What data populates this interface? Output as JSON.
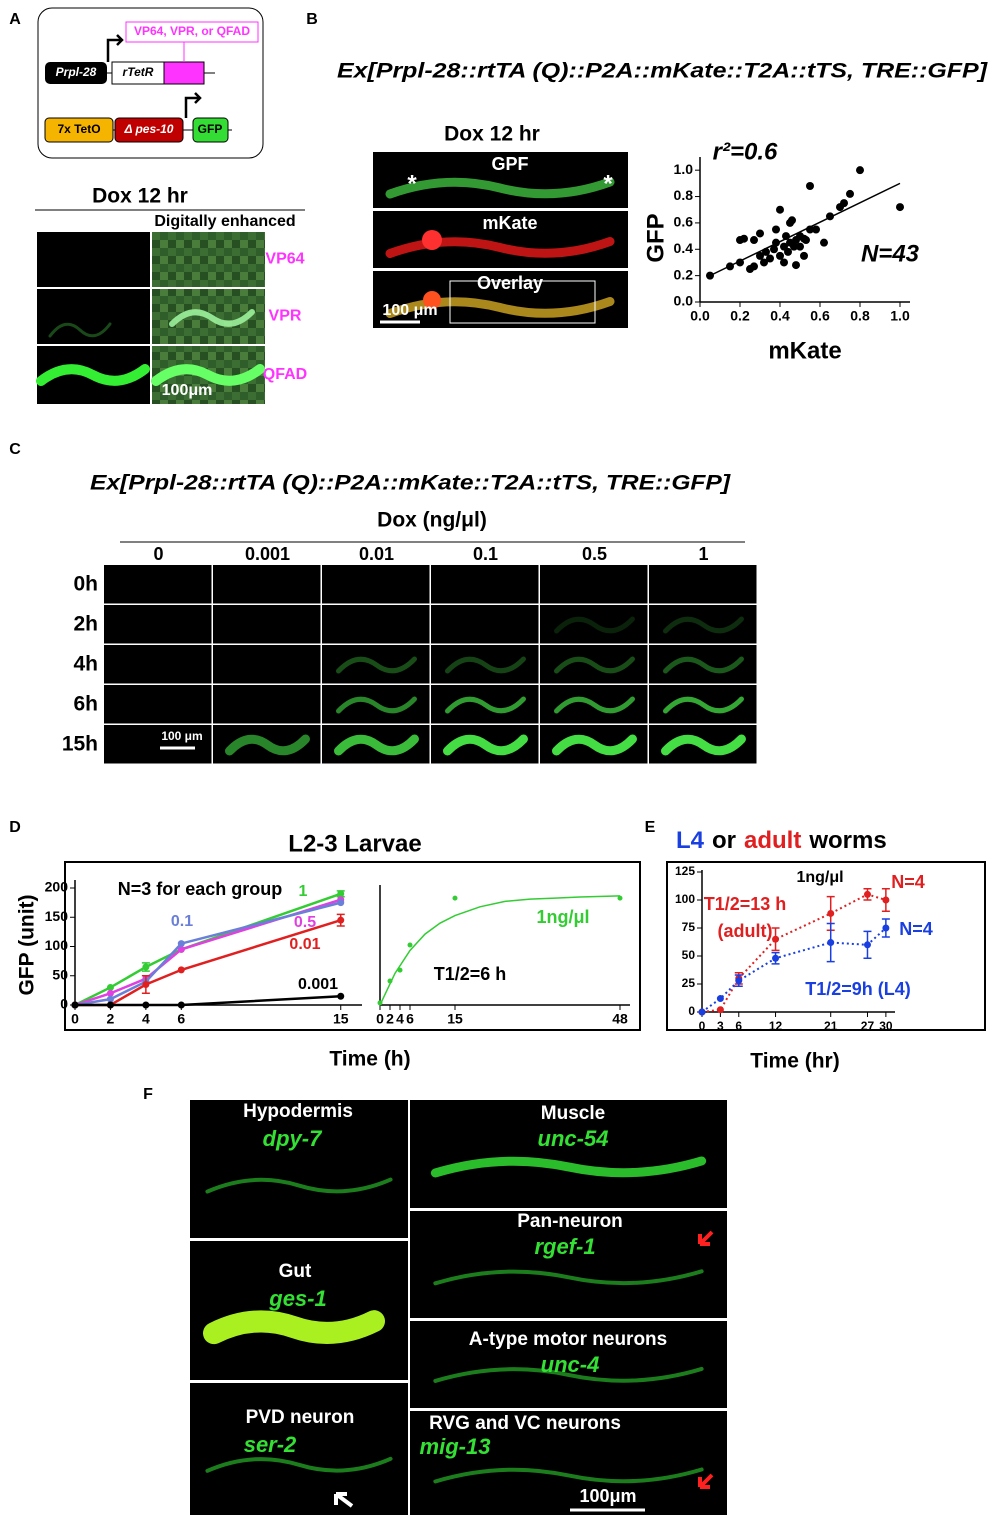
{
  "panel_labels": [
    "A",
    "B",
    "C",
    "D",
    "E",
    "F"
  ],
  "a": {
    "activator": "VP64, VPR, or QFAD",
    "promoter": "Prpl-28",
    "rtetr": "rTetR",
    "teto": "7x TetO",
    "pes10": "Δ pes-10",
    "gfp": "GFP",
    "condition": "Dox 12 hr",
    "enhanced": "Digitally enhanced",
    "rows": [
      "VP64",
      "VPR",
      "QFAD"
    ],
    "scale_bar": "100μm"
  },
  "b": {
    "title": "Ex[Prpl-28::rtTA (Q)::P2A::mKate::T2A::tTS, TRE::GFP]",
    "condition": "Dox 12 hr",
    "channels": [
      "GPF",
      "mKate",
      "Overlay"
    ],
    "asterisk": "*",
    "scale_bar": "100 μm"
  },
  "c": {
    "title": "Ex[Prpl-28::rtTA (Q)::P2A::mKate::T2A::tTS, TRE::GFP]",
    "axis_label": "Dox (ng/μl)",
    "doses": [
      "0",
      "0.001",
      "0.01",
      "0.1",
      "0.5",
      "1"
    ],
    "times": [
      "0h",
      "2h",
      "4h",
      "6h",
      "15h"
    ],
    "scale_bar": "100 μm"
  },
  "d": {
    "title": "L2-3 Larvae"
  },
  "e": {
    "title_parts": [
      "L4",
      "or",
      "adult",
      "worms"
    ]
  },
  "f": {
    "panels": [
      {
        "tissue": "Hypodermis",
        "gene": "dpy-7"
      },
      {
        "tissue": "Gut",
        "gene": "ges-1"
      },
      {
        "tissue": "PVD neuron",
        "gene": "ser-2"
      },
      {
        "tissue": "Muscle",
        "gene": "unc-54"
      },
      {
        "tissue": "Pan-neuron",
        "gene": "rgef-1"
      },
      {
        "tissue": "A-type motor neurons",
        "gene": "unc-4"
      },
      {
        "tissue": "RVG and VC neurons",
        "gene": "mig-13"
      }
    ],
    "scale_bar": "100μm"
  },
  "chart_data": [
    {
      "type": "scatter",
      "xlabel": "mKate",
      "ylabel": "GFP",
      "annotations": [
        "r²=0.6",
        "N=43"
      ],
      "color": "#000000",
      "x": [
        0.05,
        0.15,
        0.2,
        0.22,
        0.2,
        0.25,
        0.27,
        0.27,
        0.3,
        0.3,
        0.32,
        0.33,
        0.35,
        0.37,
        0.38,
        0.38,
        0.4,
        0.4,
        0.42,
        0.42,
        0.43,
        0.44,
        0.45,
        0.45,
        0.46,
        0.47,
        0.48,
        0.48,
        0.5,
        0.5,
        0.52,
        0.52,
        0.53,
        0.55,
        0.55,
        0.58,
        0.62,
        0.65,
        0.7,
        0.72,
        0.75,
        0.8,
        1.0
      ],
      "values": [
        0.2,
        0.27,
        0.47,
        0.48,
        0.3,
        0.25,
        0.27,
        0.47,
        0.35,
        0.52,
        0.3,
        0.38,
        0.33,
        0.4,
        0.45,
        0.55,
        0.7,
        0.35,
        0.42,
        0.3,
        0.5,
        0.38,
        0.45,
        0.6,
        0.62,
        0.42,
        0.47,
        0.28,
        0.5,
        0.42,
        0.48,
        0.35,
        0.47,
        0.88,
        0.55,
        0.55,
        0.45,
        0.65,
        0.72,
        0.75,
        0.82,
        1.0,
        0.72
      ],
      "trendline": {
        "x": [
          0.05,
          1.0
        ],
        "values": [
          0.2,
          0.9
        ]
      },
      "xlim": [
        0,
        1.05
      ],
      "ylim": [
        0,
        1.1
      ],
      "xticks": [
        {
          "value": 0,
          "label": "0.0"
        },
        0.2,
        0.4,
        0.6,
        0.8,
        {
          "value": 1,
          "label": "1.0"
        }
      ],
      "yticks": [
        {
          "value": 0,
          "label": "0.0"
        },
        0.2,
        0.4,
        0.6,
        0.8,
        {
          "value": 1,
          "label": "1.0"
        }
      ]
    },
    {
      "type": "line",
      "xlabel": "Time (h)",
      "ylabel": "GFP (unit)",
      "annotations": [
        "N=3 for each group"
      ],
      "x": [
        0,
        2,
        4,
        6,
        15
      ],
      "xlim": [
        0,
        16.2
      ],
      "ylim": [
        0,
        200
      ],
      "xticks": [
        0,
        2,
        4,
        6,
        15
      ],
      "yticks": [
        0,
        50,
        100,
        150,
        200
      ],
      "series": [
        {
          "name": "1",
          "color": "#33cc33",
          "values": [
            0,
            30,
            65,
            95,
            190
          ],
          "errors": [
            0,
            0,
            7,
            0,
            5
          ]
        },
        {
          "name": "0.5",
          "color": "#e040e0",
          "values": [
            0,
            20,
            45,
            95,
            180
          ]
        },
        {
          "name": "0.1",
          "color": "#6a7fd8",
          "values": [
            0,
            10,
            40,
            105,
            175
          ]
        },
        {
          "name": "0.01",
          "color": "#e02020",
          "values": [
            0,
            0,
            35,
            60,
            145
          ],
          "errors": [
            0,
            0,
            15,
            0,
            10
          ]
        },
        {
          "name": "0.001",
          "color": "#000000",
          "values": [
            0,
            0,
            0,
            0,
            15
          ]
        }
      ]
    },
    {
      "type": "scatter",
      "annotations": [
        "1ng/μl",
        "T1/2=6 h"
      ],
      "color": "#33cc33",
      "x": [
        0,
        2,
        4,
        6,
        15,
        48
      ],
      "values": [
        0.02,
        0.22,
        0.32,
        0.55,
        0.98,
        0.98
      ],
      "fit": {
        "x": [
          0,
          3,
          6,
          9,
          12,
          15,
          20,
          25,
          30,
          35,
          40,
          48
        ],
        "values": [
          0,
          0.29,
          0.5,
          0.65,
          0.75,
          0.82,
          0.9,
          0.95,
          0.97,
          0.98,
          0.99,
          1.0
        ]
      },
      "xlim": [
        0,
        50
      ],
      "ylim": [
        0,
        1.1
      ],
      "xticks": [
        0,
        2,
        4,
        6,
        15,
        48
      ]
    },
    {
      "type": "line",
      "xlabel": "Time (hr)",
      "line_style": "dotted",
      "annotations": [
        "1ng/μl",
        "T1/2=13 h",
        "(adult)",
        "T1/2=9h (L4)"
      ],
      "x": [
        0,
        3,
        6,
        12,
        21,
        27,
        30
      ],
      "xlim": [
        0,
        31
      ],
      "ylim": [
        0,
        125
      ],
      "xticks": [
        0,
        3,
        6,
        12,
        21,
        27,
        30
      ],
      "yticks": [
        0,
        25,
        50,
        75,
        100,
        125
      ],
      "series": [
        {
          "label": "N=4",
          "color": "#e02020",
          "values": [
            0,
            2,
            30,
            65,
            88,
            105,
            100
          ],
          "errors": [
            0,
            0,
            5,
            10,
            15,
            5,
            10
          ]
        },
        {
          "label": "N=4",
          "color": "#1a3fe0",
          "values": [
            0,
            12,
            28,
            48,
            62,
            60,
            75
          ],
          "errors": [
            0,
            0,
            5,
            5,
            17,
            12,
            8
          ]
        }
      ]
    }
  ]
}
